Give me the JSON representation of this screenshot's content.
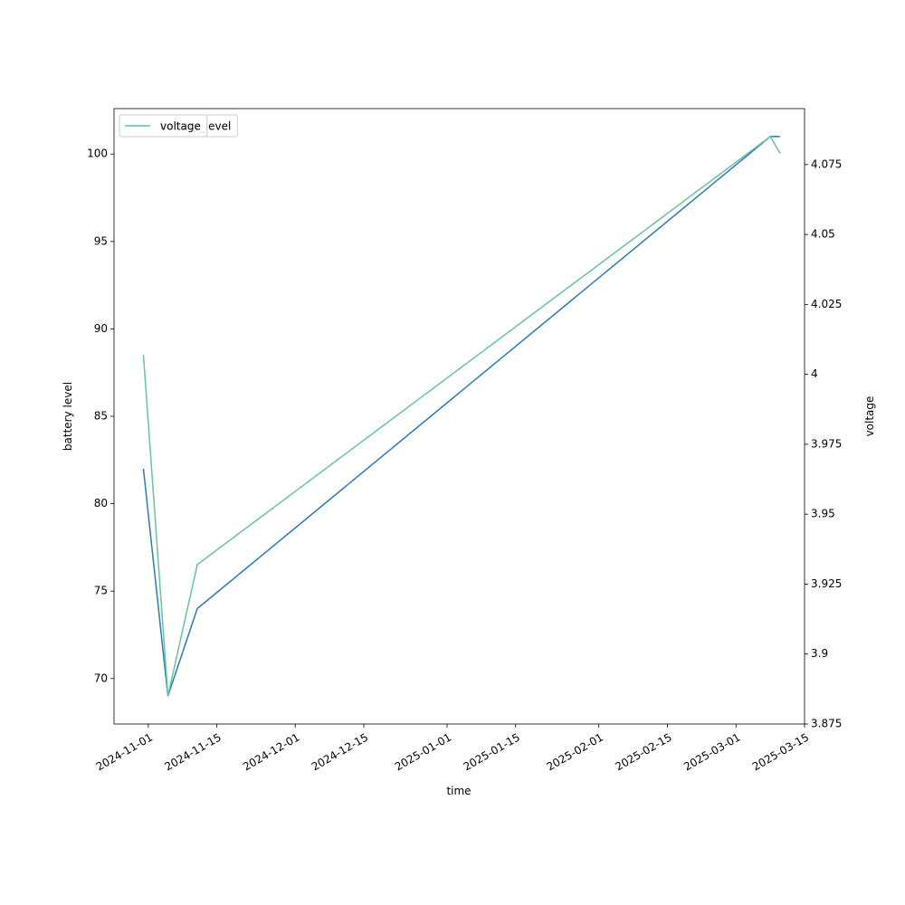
{
  "chart_data": {
    "type": "line",
    "x_label": "time",
    "y_label": "battery level",
    "y2_label": "voltage",
    "x": [
      "2024-10-31",
      "2024-11-05",
      "2024-11-11",
      "2025-03-08",
      "2025-03-10"
    ],
    "xlim": [
      "2024-10-25",
      "2025-03-15"
    ],
    "xticks": [
      "2024-11-01",
      "2024-11-15",
      "2024-12-01",
      "2024-12-15",
      "2025-01-01",
      "2025-01-15",
      "2025-02-01",
      "2025-02-15",
      "2025-03-01",
      "2025-03-15"
    ],
    "ylim": [
      67.4,
      102.6
    ],
    "yticks": [
      70,
      75,
      80,
      85,
      90,
      95,
      100
    ],
    "y2lim": [
      3.875,
      4.095
    ],
    "y2ticks": [
      3.875,
      3.9,
      3.925,
      3.95,
      3.975,
      4.0,
      4.025,
      4.05,
      4.075
    ],
    "legend_loc": "upper left",
    "series": [
      {
        "name": "battery_level",
        "color": "#2a7bb4",
        "values": [
          82,
          69,
          74,
          101,
          101
        ]
      },
      {
        "name": "voltage",
        "color": "#66c2a5",
        "axis": "y2",
        "values": [
          4.007,
          3.885,
          3.932,
          4.085,
          4.079
        ]
      }
    ]
  }
}
